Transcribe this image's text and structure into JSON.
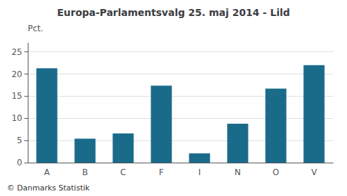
{
  "chart_data": {
    "type": "bar",
    "title": "Europa-Parlamentsvalg 25. maj 2014 - Lild",
    "ylabel": "Pct.",
    "footer": "© Danmarks Statistik",
    "categories": [
      "A",
      "B",
      "C",
      "F",
      "I",
      "N",
      "O",
      "V"
    ],
    "values": [
      21.3,
      5.4,
      6.6,
      17.4,
      2.1,
      8.8,
      16.7,
      22.0
    ],
    "color": "#1a6b8a",
    "ylim": [
      0,
      27
    ],
    "yticks": [
      0,
      5,
      10,
      15,
      20,
      25
    ],
    "grid": true
  }
}
